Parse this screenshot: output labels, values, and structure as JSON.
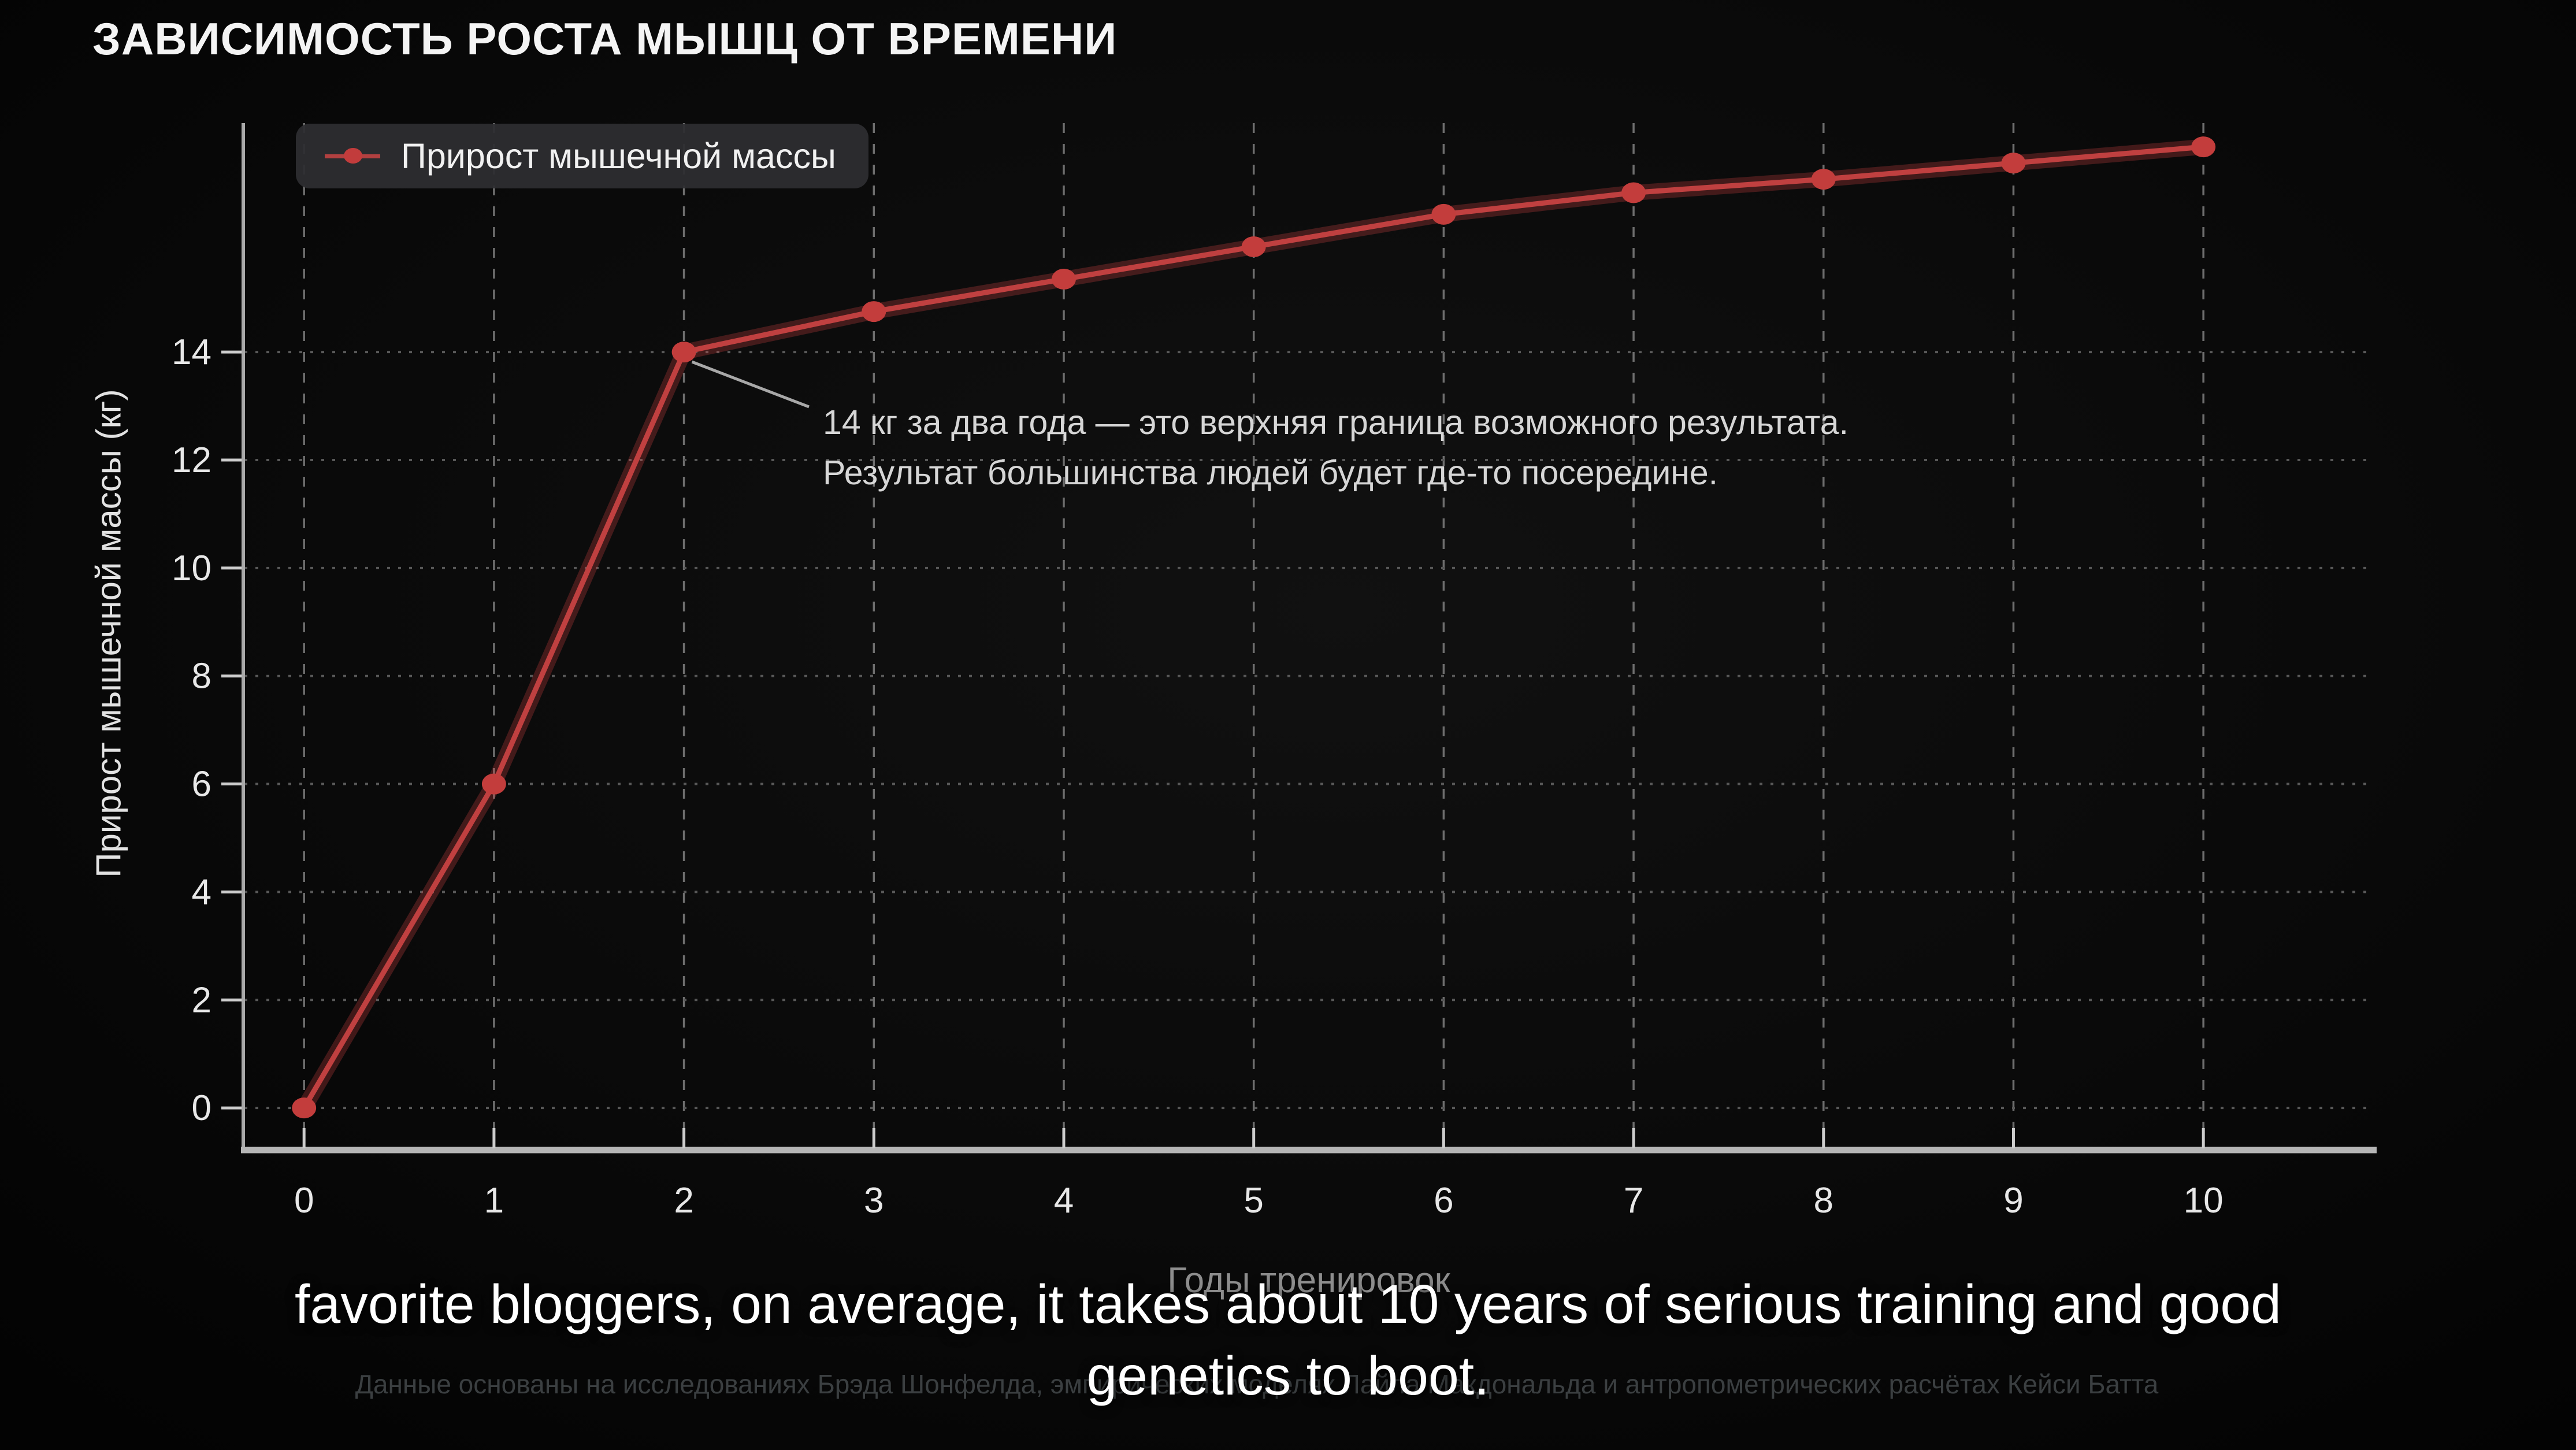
{
  "title": "ЗАВИСИМОСТЬ РОСТА МЫШЦ ОТ ВРЕМЕНИ",
  "legend": {
    "label": "Прирост мышечной массы"
  },
  "annotation": {
    "line1": "14 кг за два года — это верхняя граница возможного результата.",
    "line2": "Результат большинства людей будет где-то посередине."
  },
  "caption": {
    "line1": "favorite bloggers, on average, it takes about 10 years of serious training and good",
    "line2": "genetics to boot."
  },
  "footnote": "Данные основаны на исследованиях Брэда Шонфелда, эмпирических моделях Лайла Макдональда и антропометрических расчётах Кейси Батта",
  "chart_data": {
    "type": "line",
    "title": "ЗАВИСИМОСТЬ РОСТА МЫШЦ ОТ ВРЕМЕНИ",
    "xlabel": "Годы тренировок",
    "ylabel": "Прирост мышечной массы (кг)",
    "series": [
      {
        "name": "Прирост мышечной массы",
        "x": [
          0,
          1,
          2,
          3,
          4,
          5,
          6,
          7,
          8,
          9,
          10
        ],
        "values": [
          0,
          6,
          14,
          14.75,
          15.35,
          15.95,
          16.55,
          16.95,
          17.2,
          17.5,
          17.8
        ]
      }
    ],
    "x_ticks": [
      0,
      1,
      2,
      3,
      4,
      5,
      6,
      7,
      8,
      9,
      10
    ],
    "y_ticks": [
      0,
      2,
      4,
      6,
      8,
      10,
      12,
      14
    ],
    "xlim": [
      -0.32,
      10.9
    ],
    "ylim": [
      -0.78,
      18.24
    ],
    "grid": true,
    "legend_position": "top-left",
    "annotation_target": {
      "x": 2,
      "y": 14
    },
    "colors": {
      "line": "#c04040",
      "line_glow": "rgba(215,70,70,0.28)",
      "marker": "#c33d3c",
      "h_grid": "#585858",
      "v_grid": "#6e6e6e",
      "axis": "#b5b5b5",
      "tick": "#cccccc",
      "tick_label": "#e8e8e8",
      "leader_line": "#a8a8a8"
    }
  }
}
